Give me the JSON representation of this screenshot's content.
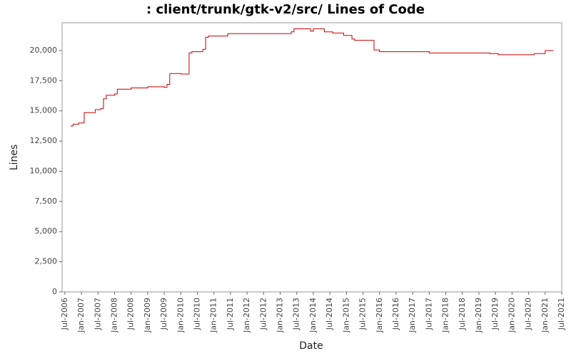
{
  "chart_data": {
    "type": "line",
    "step": true,
    "title": ": client/trunk/gtk-v2/src/ Lines of Code",
    "x_label": "Date",
    "y_label": "Lines",
    "x": [
      "2006-09",
      "2006-10",
      "2006-12",
      "2007-02",
      "2007-06",
      "2007-08",
      "2007-09",
      "2007-10",
      "2008-01",
      "2008-02",
      "2008-07",
      "2009-01",
      "2009-07",
      "2009-08",
      "2009-09",
      "2010-01",
      "2010-04",
      "2010-05",
      "2010-09",
      "2010-10",
      "2010-11",
      "2011-06",
      "2013-05",
      "2013-06",
      "2013-12",
      "2014-01",
      "2014-05",
      "2014-08",
      "2014-12",
      "2015-03",
      "2015-04",
      "2015-11",
      "2016-01",
      "2017-07",
      "2019-05",
      "2019-08",
      "2020-09",
      "2021-01",
      "2021-04"
    ],
    "series": [
      {
        "name": "Lines",
        "color": "#cc0000",
        "values": [
          13750,
          13900,
          14000,
          14850,
          15100,
          15200,
          16000,
          16300,
          16400,
          16800,
          16900,
          17000,
          16950,
          17200,
          18100,
          18050,
          19800,
          19900,
          20100,
          21100,
          21200,
          21400,
          21550,
          21800,
          21600,
          21800,
          21550,
          21450,
          21250,
          20950,
          20850,
          20050,
          19900,
          19800,
          19750,
          19650,
          19750,
          20000,
          20000
        ]
      }
    ],
    "xlim": [
      "2006-06",
      "2021-07"
    ],
    "xticks": [
      {
        "value": "2006-07",
        "label": "Jul-2006"
      },
      {
        "value": "2007-01",
        "label": "Jan-2007"
      },
      {
        "value": "2007-07",
        "label": "Jul-2007"
      },
      {
        "value": "2008-01",
        "label": "Jan-2008"
      },
      {
        "value": "2008-07",
        "label": "Jul-2008"
      },
      {
        "value": "2009-01",
        "label": "Jan-2009"
      },
      {
        "value": "2009-07",
        "label": "Jul-2009"
      },
      {
        "value": "2010-01",
        "label": "Jan-2010"
      },
      {
        "value": "2010-07",
        "label": "Jul-2010"
      },
      {
        "value": "2011-01",
        "label": "Jan-2011"
      },
      {
        "value": "2011-07",
        "label": "Jul-2011"
      },
      {
        "value": "2012-01",
        "label": "Jan-2012"
      },
      {
        "value": "2012-07",
        "label": "Jul-2012"
      },
      {
        "value": "2013-01",
        "label": "Jan-2013"
      },
      {
        "value": "2013-07",
        "label": "Jul-2013"
      },
      {
        "value": "2014-01",
        "label": "Jan-2014"
      },
      {
        "value": "2014-07",
        "label": "Jul-2014"
      },
      {
        "value": "2015-01",
        "label": "Jan-2015"
      },
      {
        "value": "2015-07",
        "label": "Jul-2015"
      },
      {
        "value": "2016-01",
        "label": "Jan-2016"
      },
      {
        "value": "2016-07",
        "label": "Jul-2016"
      },
      {
        "value": "2017-01",
        "label": "Jan-2017"
      },
      {
        "value": "2017-07",
        "label": "Jul-2017"
      },
      {
        "value": "2018-01",
        "label": "Jan-2018"
      },
      {
        "value": "2018-07",
        "label": "Jul-2018"
      },
      {
        "value": "2019-01",
        "label": "Jan-2019"
      },
      {
        "value": "2019-07",
        "label": "Jul-2019"
      },
      {
        "value": "2020-01",
        "label": "Jan-2020"
      },
      {
        "value": "2020-07",
        "label": "Jul-2020"
      },
      {
        "value": "2021-01",
        "label": "Jan-2021"
      },
      {
        "value": "2021-07",
        "label": "Jul-2021"
      }
    ],
    "ylim": [
      0,
      22300
    ],
    "yticks": [
      0,
      {
        "value": 2500,
        "label": "2,500"
      },
      {
        "value": 5000,
        "label": "5,000"
      },
      {
        "value": 7500,
        "label": "7,500"
      },
      {
        "value": 10000,
        "label": "10,000"
      },
      {
        "value": 12500,
        "label": "12,500"
      },
      {
        "value": 15000,
        "label": "15,000"
      },
      {
        "value": 17500,
        "label": "17,500"
      },
      {
        "value": 20000,
        "label": "20,000"
      }
    ]
  }
}
